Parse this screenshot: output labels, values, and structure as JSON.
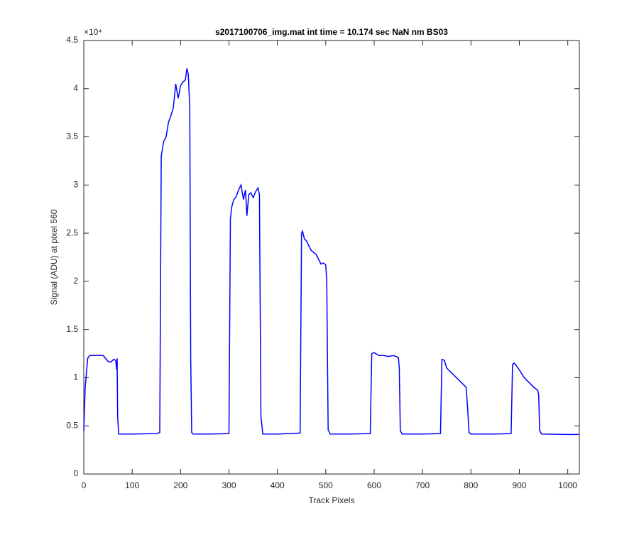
{
  "chart_data": {
    "type": "line",
    "title": "s2017100706_img.mat int time = 10.174 sec  NaN nm BS03",
    "x_label": "Track Pixels",
    "y_label": "Signal (ADU) at pixel 560",
    "y_multiplier": "×10⁴",
    "x": [
      0,
      3,
      8,
      12,
      25,
      40,
      50,
      55,
      62,
      66,
      68,
      69,
      70,
      72,
      100,
      150,
      157,
      160,
      165,
      170,
      175,
      180,
      185,
      190,
      195,
      200,
      205,
      210,
      213,
      216,
      219,
      221,
      223,
      226,
      260,
      300,
      303,
      306,
      310,
      315,
      320,
      325,
      330,
      334,
      337,
      341,
      345,
      350,
      355,
      360,
      363,
      366,
      370,
      400,
      447,
      450,
      452,
      456,
      460,
      470,
      480,
      490,
      495,
      500,
      502,
      505,
      509,
      550,
      592,
      595,
      600,
      610,
      620,
      630,
      640,
      650,
      652,
      654,
      658,
      700,
      737,
      740,
      745,
      750,
      760,
      770,
      780,
      790,
      793,
      796,
      800,
      850,
      883,
      886,
      890,
      900,
      910,
      920,
      930,
      938,
      940,
      942,
      946,
      1000,
      1023
    ],
    "series": [
      {
        "name": "signal",
        "color": "#0000ff",
        "values": [
          4500,
          9000,
          12000,
          12300,
          12300,
          12300,
          11700,
          11600,
          11900,
          11800,
          10800,
          12000,
          6000,
          4150,
          4150,
          4200,
          4300,
          33000,
          34500,
          35000,
          36500,
          37200,
          38000,
          40500,
          39000,
          40300,
          40700,
          40900,
          42100,
          41500,
          38000,
          12000,
          4300,
          4150,
          4150,
          4200,
          26500,
          27800,
          28500,
          28800,
          29500,
          30000,
          28500,
          29500,
          26800,
          29000,
          29200,
          28700,
          29300,
          29700,
          29000,
          6000,
          4150,
          4150,
          4250,
          25000,
          25200,
          24400,
          24200,
          23200,
          22800,
          21800,
          21900,
          21700,
          20000,
          4600,
          4150,
          4150,
          4200,
          12500,
          12600,
          12300,
          12300,
          12200,
          12300,
          12100,
          11000,
          4500,
          4150,
          4150,
          4200,
          11900,
          11800,
          11000,
          10500,
          10000,
          9500,
          9000,
          7000,
          4300,
          4150,
          4150,
          4200,
          11400,
          11500,
          10800,
          10000,
          9500,
          9000,
          8700,
          8200,
          4500,
          4150,
          4100,
          4100
        ]
      }
    ],
    "xlim": [
      0,
      1024
    ],
    "ylim": [
      0,
      45000
    ],
    "xticks": [
      0,
      100,
      200,
      300,
      400,
      500,
      600,
      700,
      800,
      900,
      1000
    ],
    "yticks": [
      0,
      {
        "value": 5000,
        "label": "0.5"
      },
      {
        "value": 10000,
        "label": "1"
      },
      {
        "value": 15000,
        "label": "1.5"
      },
      {
        "value": 20000,
        "label": "2"
      },
      {
        "value": 25000,
        "label": "2.5"
      },
      {
        "value": 30000,
        "label": "3"
      },
      {
        "value": 35000,
        "label": "3.5"
      },
      {
        "value": 40000,
        "label": "4"
      },
      {
        "value": 45000,
        "label": "4.5"
      }
    ]
  }
}
